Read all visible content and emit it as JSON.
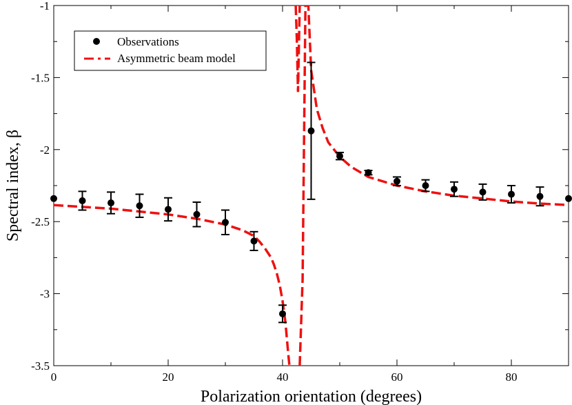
{
  "chart_data": {
    "type": "scatter",
    "xlabel": "Polarization orientation (degrees)",
    "ylabel": "Spectral index, β",
    "xlim": [
      0,
      90
    ],
    "ylim": [
      -3.5,
      -1
    ],
    "x_ticks": [
      0,
      20,
      40,
      60,
      80
    ],
    "x_tick_labels": [
      "0",
      "20",
      "40",
      "60",
      "80"
    ],
    "y_ticks": [
      -3.5,
      -3,
      -2.5,
      -2,
      -1.5,
      -1
    ],
    "y_tick_labels": [
      "-3.5",
      "-3",
      "-2.5",
      "-2",
      "-1.5",
      "-1"
    ],
    "grid": false,
    "legend_position": "top-left",
    "series": [
      {
        "name": "Observations",
        "kind": "points-with-errorbars",
        "color": "#000000",
        "points": [
          {
            "x": 0,
            "y": -2.34,
            "err": 0.0
          },
          {
            "x": 5,
            "y": -2.355,
            "err": 0.065
          },
          {
            "x": 10,
            "y": -2.37,
            "err": 0.075
          },
          {
            "x": 15,
            "y": -2.39,
            "err": 0.08
          },
          {
            "x": 20,
            "y": -2.415,
            "err": 0.08
          },
          {
            "x": 25,
            "y": -2.45,
            "err": 0.085
          },
          {
            "x": 30,
            "y": -2.505,
            "err": 0.085
          },
          {
            "x": 35,
            "y": -2.635,
            "err": 0.065
          },
          {
            "x": 40,
            "y": -3.14,
            "err": 0.06
          },
          {
            "x": 45,
            "y": -1.87,
            "err": 0.475
          },
          {
            "x": 50,
            "y": -2.045,
            "err": 0.025
          },
          {
            "x": 55,
            "y": -2.16,
            "err": 0.015
          },
          {
            "x": 60,
            "y": -2.22,
            "err": 0.03
          },
          {
            "x": 65,
            "y": -2.25,
            "err": 0.04
          },
          {
            "x": 70,
            "y": -2.275,
            "err": 0.05
          },
          {
            "x": 75,
            "y": -2.295,
            "err": 0.055
          },
          {
            "x": 80,
            "y": -2.31,
            "err": 0.06
          },
          {
            "x": 85,
            "y": -2.325,
            "err": 0.065
          },
          {
            "x": 90,
            "y": -2.34,
            "err": 0.0
          }
        ]
      },
      {
        "name": "Asymmetric beam model",
        "kind": "dashed-line",
        "color": "#ee1111",
        "segments": [
          {
            "x": [
              0,
              10,
              20,
              25,
              30,
              33,
              35,
              36,
              37,
              38,
              38.5,
              39,
              39.5,
              40,
              40.5,
              41,
              41.2
            ],
            "y": [
              -2.385,
              -2.41,
              -2.45,
              -2.48,
              -2.52,
              -2.56,
              -2.6,
              -2.64,
              -2.69,
              -2.75,
              -2.8,
              -2.86,
              -2.94,
              -3.05,
              -3.2,
              -3.42,
              -3.5
            ]
          },
          {
            "x": [
              43,
              43.5,
              44,
              44.5,
              45,
              46,
              47,
              48,
              50,
              52,
              55,
              60,
              65,
              70,
              75,
              80,
              85,
              90
            ],
            "y": [
              -3.5,
              -2.9,
              -1.0,
              -1.0,
              -1.45,
              -1.72,
              -1.85,
              -1.95,
              -2.05,
              -2.12,
              -2.19,
              -2.25,
              -2.29,
              -2.32,
              -2.34,
              -2.36,
              -2.375,
              -2.385
            ]
          },
          {
            "x": [
              42.3,
              42.5,
              42.7,
              43.0
            ],
            "y": [
              -1.0,
              -1.25,
              -1.6,
              -1.0
            ]
          }
        ]
      }
    ]
  }
}
